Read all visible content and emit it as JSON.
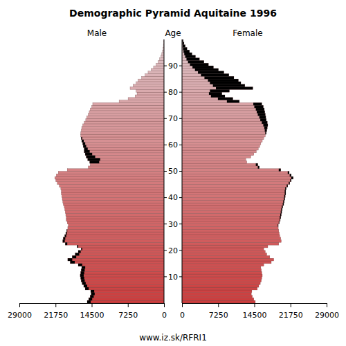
{
  "chart_data": {
    "type": "bar",
    "orientation": "horizontal",
    "title": "Demographic Pyramid Aquitaine 1996",
    "ylabel": "Age",
    "footer": "www.iz.sk/RFRI1",
    "categories": [
      0,
      1,
      2,
      3,
      4,
      5,
      6,
      7,
      8,
      9,
      10,
      11,
      12,
      13,
      14,
      15,
      16,
      17,
      18,
      19,
      20,
      21,
      22,
      23,
      24,
      25,
      26,
      27,
      28,
      29,
      30,
      31,
      32,
      33,
      34,
      35,
      36,
      37,
      38,
      39,
      40,
      41,
      42,
      43,
      44,
      45,
      46,
      47,
      48,
      49,
      50,
      51,
      52,
      53,
      54,
      55,
      56,
      57,
      58,
      59,
      60,
      61,
      62,
      63,
      64,
      65,
      66,
      67,
      68,
      69,
      70,
      71,
      72,
      73,
      74,
      75,
      76,
      77,
      78,
      79,
      80,
      81,
      82,
      83,
      84,
      85,
      86,
      87,
      88,
      89,
      90,
      91,
      92,
      93,
      94,
      95,
      96,
      97,
      98,
      99
    ],
    "series": [
      {
        "name": "Male",
        "values": [
          15400,
          15100,
          14800,
          14600,
          14700,
          15800,
          16100,
          16400,
          16600,
          16700,
          16800,
          16700,
          16600,
          16500,
          17200,
          18800,
          19300,
          18400,
          17800,
          17200,
          16600,
          17400,
          19800,
          20300,
          20200,
          19900,
          19700,
          19500,
          19300,
          19200,
          19400,
          19600,
          19600,
          19700,
          19800,
          19900,
          20000,
          20200,
          20300,
          20400,
          20500,
          20600,
          20600,
          20700,
          21000,
          21400,
          21700,
          21900,
          21600,
          21200,
          19400,
          15200,
          14800,
          14900,
          15300,
          15600,
          15800,
          16000,
          16000,
          16200,
          16300,
          16500,
          16600,
          16700,
          16700,
          16600,
          16500,
          16300,
          16000,
          15700,
          15500,
          15200,
          15000,
          14800,
          14500,
          14300,
          9000,
          7200,
          5800,
          5400,
          5600,
          6800,
          6200,
          5600,
          5200,
          4500,
          3800,
          3200,
          2600,
          2100,
          1600,
          1200,
          900,
          650,
          450,
          300,
          200,
          130,
          80,
          50
        ]
      },
      {
        "name": "Female",
        "values": [
          14700,
          14400,
          14100,
          13900,
          14000,
          15100,
          15400,
          15700,
          15900,
          16000,
          16100,
          16000,
          15900,
          15800,
          16400,
          17900,
          18400,
          17600,
          17000,
          16700,
          16400,
          17200,
          19400,
          19900,
          19800,
          19600,
          19500,
          19400,
          19300,
          19300,
          19500,
          19700,
          19800,
          19900,
          20000,
          20100,
          20200,
          20400,
          20500,
          20600,
          20700,
          20800,
          20800,
          20900,
          21200,
          21600,
          21900,
          22300,
          21900,
          21500,
          19800,
          15500,
          15200,
          13000,
          12800,
          13800,
          14400,
          14900,
          15300,
          15600,
          15800,
          16100,
          16400,
          16700,
          16900,
          17000,
          17100,
          17200,
          17100,
          16900,
          16800,
          16700,
          16600,
          16500,
          16300,
          16000,
          11500,
          10200,
          8600,
          8000,
          9500,
          14200,
          12600,
          11800,
          11300,
          10400,
          9400,
          8400,
          7300,
          6300,
          5300,
          4400,
          3500,
          2700,
          2000,
          1500,
          1000,
          650,
          400,
          250
        ]
      }
    ],
    "xlim": [
      0,
      29000
    ],
    "xticks": [
      0,
      7250,
      14500,
      21750,
      29000
    ],
    "ylim": [
      0,
      100
    ],
    "yticks": [
      10,
      20,
      30,
      40,
      50,
      60,
      70,
      80,
      90
    ]
  }
}
